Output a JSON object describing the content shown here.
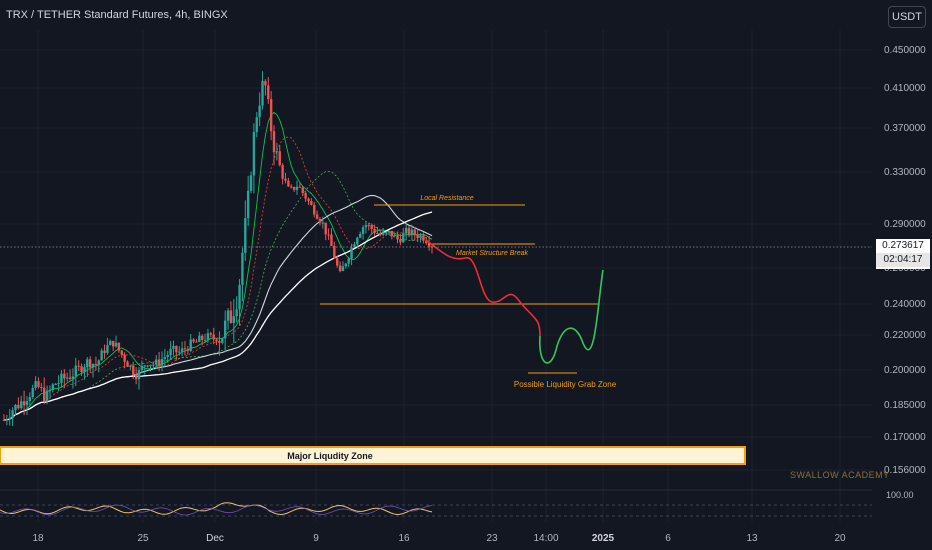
{
  "header": {
    "title": "TRX / TETHER Standard Futures, 4h, BINGX"
  },
  "toolbar": {
    "currency_label": "USDT"
  },
  "last_price": {
    "value": "0.273617",
    "countdown": "02:04:17"
  },
  "watermark": "SWALLOW ACADEMY",
  "annotations": {
    "local_resistance": "Local Resistance",
    "structure_break": "Market Structure Break",
    "liquidity_grab": "Possible Liquidity Grab Zone",
    "major_zone": "Major Liqudity Zone"
  },
  "colors": {
    "background": "#131722",
    "up": "#26a69a",
    "down": "#ef5350",
    "annotation": "#f59e0b",
    "zone_fill": "#fff3d6",
    "projection_down": "#ef2b3c",
    "projection_up": "#34c759"
  },
  "chart_data": {
    "type": "candlestick",
    "title": "TRX / TETHER Standard Futures, 4h, BINGX",
    "y_ticks": [
      "0.450000",
      "0.410000",
      "0.370000",
      "0.330000",
      "0.290000",
      "0.260000",
      "0.240000",
      "0.220000",
      "0.200000",
      "0.185000",
      "0.170000",
      "0.156000"
    ],
    "x_ticks": [
      "18",
      "25",
      "Dec",
      "9",
      "16",
      "23",
      "14:00",
      "2025",
      "6",
      "13",
      "20"
    ],
    "oscillator_label": "100.00",
    "series": [
      {
        "name": "close (approx)",
        "values": [
          0.178,
          0.183,
          0.186,
          0.19,
          0.193,
          0.188,
          0.194,
          0.196,
          0.198,
          0.201,
          0.205,
          0.203,
          0.212,
          0.216,
          0.209,
          0.202,
          0.198,
          0.205,
          0.203,
          0.207,
          0.211,
          0.21,
          0.214,
          0.216,
          0.219,
          0.218,
          0.221,
          0.232,
          0.25,
          0.3,
          0.38,
          0.42,
          0.36,
          0.33,
          0.315,
          0.32,
          0.31,
          0.3,
          0.29,
          0.275,
          0.255,
          0.268,
          0.282,
          0.29,
          0.286,
          0.282,
          0.284,
          0.279,
          0.285,
          0.283,
          0.281,
          0.276
        ]
      }
    ],
    "levels": {
      "local_resistance": 0.3045,
      "market_structure_break": 0.2762,
      "support": 0.2375,
      "liquidity_grab": 0.2025
    },
    "zones": {
      "major_liquidity_low": 0.1585,
      "major_liquidity_high": 0.1665
    },
    "projection": [
      0.2762,
      0.268,
      0.262,
      0.25,
      0.236,
      0.241,
      0.232,
      0.208,
      0.226,
      0.212,
      0.236,
      0.258
    ]
  }
}
